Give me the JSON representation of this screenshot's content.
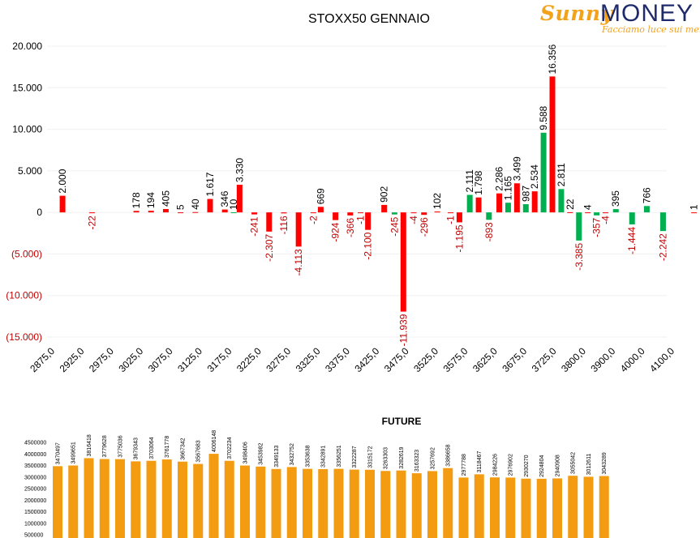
{
  "logo": {
    "word1": "Sunny",
    "word2": "MONEY",
    "tagline": "Facciamo luce sui mercati"
  },
  "colors": {
    "positive": "#ff0000",
    "negative": "#00b050",
    "label_negative": "#c00000",
    "future_bar": "#f39c12"
  },
  "chart_data": [
    {
      "type": "bar",
      "title": "STOXX50 GENNAIO",
      "xlabel": "",
      "ylabel": "",
      "ylim": [
        -15000,
        20000
      ],
      "y_ticks": [
        "20.000",
        "15.000",
        "10.000",
        "5.000",
        "0",
        "(5.000)",
        "(10.000)",
        "(15.000)"
      ],
      "x_ticks": [
        "2875,0",
        "2925,0",
        "2975,0",
        "3025,0",
        "3075,0",
        "3125,0",
        "3175,0",
        "3225,0",
        "3275,0",
        "3325,0",
        "3375,0",
        "3425,0",
        "3475,0",
        "3525,0",
        "3575,0",
        "3625,0",
        "3675,0",
        "3725,0",
        "3800,0",
        "3900,0",
        "4000,0",
        "4100,0"
      ],
      "series": [
        {
          "bars": [
            {
              "x": 0.25,
              "value": 2000,
              "color": "red",
              "label": "2.000"
            },
            {
              "x": 1.25,
              "value": -22,
              "color": "red",
              "label": "-22"
            },
            {
              "x": 2.75,
              "value": 178,
              "color": "red",
              "label": "178"
            },
            {
              "x": 3.25,
              "value": 194,
              "color": "red",
              "label": "194"
            },
            {
              "x": 3.75,
              "value": 405,
              "color": "red",
              "label": "405"
            },
            {
              "x": 4.25,
              "value": 5,
              "color": "red",
              "label": "5"
            },
            {
              "x": 4.75,
              "value": 40,
              "color": "red",
              "label": "40"
            },
            {
              "x": 5.25,
              "value": 1617,
              "color": "red",
              "label": "1.617"
            },
            {
              "x": 5.75,
              "value": 346,
              "color": "red",
              "label": "346"
            },
            {
              "x": 6.05,
              "value": 10,
              "color": "green",
              "label": "10"
            },
            {
              "x": 6.25,
              "value": 3330,
              "color": "red",
              "label": "3.330"
            },
            {
              "x": 6.75,
              "value": -241,
              "color": "red",
              "label": "-241"
            },
            {
              "x": 7.25,
              "value": -2307,
              "color": "red",
              "label": "-2.307"
            },
            {
              "x": 7.75,
              "value": -116,
              "color": "red",
              "label": "-116"
            },
            {
              "x": 8.25,
              "value": -4113,
              "color": "red",
              "label": "-4.113"
            },
            {
              "x": 8.75,
              "value": -2,
              "color": "red",
              "label": "-2"
            },
            {
              "x": 9.0,
              "value": 669,
              "color": "red",
              "label": "669"
            },
            {
              "x": 9.5,
              "value": -924,
              "color": "red",
              "label": "-924"
            },
            {
              "x": 10.0,
              "value": -366,
              "color": "red",
              "label": "-366"
            },
            {
              "x": 10.35,
              "value": -1,
              "color": "red",
              "label": "-1"
            },
            {
              "x": 10.6,
              "value": -2100,
              "color": "red",
              "label": "-2.100"
            },
            {
              "x": 11.15,
              "value": 902,
              "color": "red",
              "label": "902"
            },
            {
              "x": 11.5,
              "value": -245,
              "color": "green",
              "label": "-245"
            },
            {
              "x": 11.8,
              "value": -11939,
              "color": "red",
              "label": "-11.939"
            },
            {
              "x": 12.15,
              "value": -4,
              "color": "red",
              "label": "-4"
            },
            {
              "x": 12.5,
              "value": -296,
              "color": "red",
              "label": "-296"
            },
            {
              "x": 12.95,
              "value": 102,
              "color": "red",
              "label": "102"
            },
            {
              "x": 13.4,
              "value": -1,
              "color": "red",
              "label": "-1"
            },
            {
              "x": 13.7,
              "value": -1195,
              "color": "red",
              "label": "-1.195"
            },
            {
              "x": 14.05,
              "value": 2111,
              "color": "green",
              "label": "2.111"
            },
            {
              "x": 14.35,
              "value": 1798,
              "color": "red",
              "label": "1.798"
            },
            {
              "x": 14.7,
              "value": -893,
              "color": "green",
              "label": "-893"
            },
            {
              "x": 15.05,
              "value": 2286,
              "color": "red",
              "label": "2.286"
            },
            {
              "x": 15.35,
              "value": 1165,
              "color": "green",
              "label": "1.165"
            },
            {
              "x": 15.65,
              "value": 3499,
              "color": "red",
              "label": "3.499"
            },
            {
              "x": 15.95,
              "value": 987,
              "color": "green",
              "label": "987"
            },
            {
              "x": 16.25,
              "value": 2534,
              "color": "red",
              "label": "2.534"
            },
            {
              "x": 16.55,
              "value": 9588,
              "color": "green",
              "label": "9.588"
            },
            {
              "x": 16.85,
              "value": 16356,
              "color": "red",
              "label": "16.356"
            },
            {
              "x": 17.15,
              "value": 2811,
              "color": "green",
              "label": "2.811"
            },
            {
              "x": 17.45,
              "value": 22,
              "color": "red",
              "label": "22"
            },
            {
              "x": 17.75,
              "value": -3385,
              "color": "green",
              "label": "-3.385"
            },
            {
              "x": 18.05,
              "value": 4,
              "color": "red",
              "label": "4"
            },
            {
              "x": 18.35,
              "value": -357,
              "color": "green",
              "label": "-357"
            },
            {
              "x": 18.65,
              "value": -4,
              "color": "red",
              "label": "-4"
            },
            {
              "x": 19.0,
              "value": 395,
              "color": "green",
              "label": "395"
            },
            {
              "x": 19.55,
              "value": -1444,
              "color": "green",
              "label": "-1.444"
            },
            {
              "x": 20.05,
              "value": 766,
              "color": "green",
              "label": "766"
            },
            {
              "x": 20.6,
              "value": -2242,
              "color": "green",
              "label": "-2.242"
            },
            {
              "x": 21.65,
              "value": 1,
              "color": "red",
              "label": "1"
            }
          ]
        }
      ]
    },
    {
      "type": "bar",
      "title": "FUTURE",
      "ylim": [
        500000,
        4500000
      ],
      "y_ticks": [
        "4500000",
        "4000000",
        "3500000",
        "3000000",
        "2500000",
        "2000000",
        "1500000",
        "1000000",
        "500000"
      ],
      "values": [
        3470497,
        3499651,
        3816418,
        3779628,
        3775036,
        3679343,
        3703064,
        3761778,
        3667342,
        3567683,
        4006148,
        3702234,
        3498406,
        3453982,
        3349133,
        3432752,
        3353638,
        3342891,
        3356251,
        3322287,
        3315172,
        3263303,
        3282619,
        3163323,
        3257692,
        3386658,
        2977788,
        3118467,
        2984226,
        2976902,
        2930270,
        2924804,
        2940908,
        3055042,
        3012611,
        3043289
      ]
    }
  ]
}
